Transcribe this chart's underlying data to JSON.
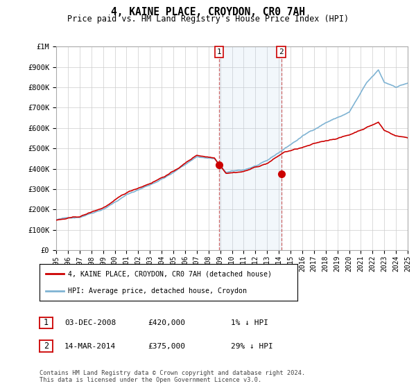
{
  "title": "4, KAINE PLACE, CROYDON, CR0 7AH",
  "subtitle": "Price paid vs. HM Land Registry's House Price Index (HPI)",
  "ylim": [
    0,
    1000000
  ],
  "yticks": [
    0,
    100000,
    200000,
    300000,
    400000,
    500000,
    600000,
    700000,
    800000,
    900000,
    1000000
  ],
  "ytick_labels": [
    "£0",
    "£100K",
    "£200K",
    "£300K",
    "£400K",
    "£500K",
    "£600K",
    "£700K",
    "£800K",
    "£900K",
    "£1M"
  ],
  "sale1_date": 2008.92,
  "sale1_price": 420000,
  "sale2_date": 2014.21,
  "sale2_price": 375000,
  "line_color_price": "#cc0000",
  "line_color_hpi": "#7fb3d3",
  "shade_color": "#ddeeff",
  "grid_color": "#cccccc",
  "vline_color": "#cc6666",
  "marker_color": "#cc0000",
  "legend_label1": "4, KAINE PLACE, CROYDON, CR0 7AH (detached house)",
  "legend_label2": "HPI: Average price, detached house, Croydon",
  "annotation1_date": "03-DEC-2008",
  "annotation1_price": "£420,000",
  "annotation1_change": "1% ↓ HPI",
  "annotation2_date": "14-MAR-2014",
  "annotation2_price": "£375,000",
  "annotation2_change": "29% ↓ HPI",
  "footer": "Contains HM Land Registry data © Crown copyright and database right 2024.\nThis data is licensed under the Open Government Licence v3.0.",
  "background_color": "#ffffff"
}
